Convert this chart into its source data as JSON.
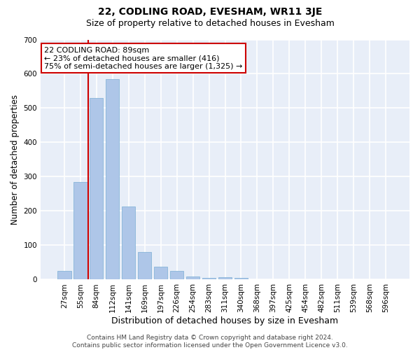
{
  "title": "22, CODLING ROAD, EVESHAM, WR11 3JE",
  "subtitle": "Size of property relative to detached houses in Evesham",
  "xlabel": "Distribution of detached houses by size in Evesham",
  "ylabel": "Number of detached properties",
  "bar_color": "#aec6e8",
  "bar_edge_color": "#7aafd4",
  "background_color": "#e8eef8",
  "grid_color": "#ffffff",
  "fig_background": "#ffffff",
  "categories": [
    "27sqm",
    "55sqm",
    "84sqm",
    "112sqm",
    "141sqm",
    "169sqm",
    "197sqm",
    "226sqm",
    "254sqm",
    "283sqm",
    "311sqm",
    "340sqm",
    "368sqm",
    "397sqm",
    "425sqm",
    "454sqm",
    "482sqm",
    "511sqm",
    "539sqm",
    "568sqm",
    "596sqm"
  ],
  "values": [
    25,
    285,
    530,
    585,
    213,
    80,
    37,
    25,
    10,
    5,
    8,
    5,
    0,
    0,
    0,
    0,
    0,
    0,
    0,
    0,
    0
  ],
  "ylim": [
    0,
    700
  ],
  "yticks": [
    0,
    100,
    200,
    300,
    400,
    500,
    600,
    700
  ],
  "property_line_x": 1.5,
  "annotation_text": "22 CODLING ROAD: 89sqm\n← 23% of detached houses are smaller (416)\n75% of semi-detached houses are larger (1,325) →",
  "annotation_box_color": "#ffffff",
  "annotation_box_edge_color": "#cc0000",
  "annotation_line_color": "#cc0000",
  "footnote": "Contains HM Land Registry data © Crown copyright and database right 2024.\nContains public sector information licensed under the Open Government Licence v3.0.",
  "title_fontsize": 10,
  "subtitle_fontsize": 9,
  "tick_fontsize": 7.5,
  "ylabel_fontsize": 8.5,
  "xlabel_fontsize": 9,
  "annotation_fontsize": 8
}
